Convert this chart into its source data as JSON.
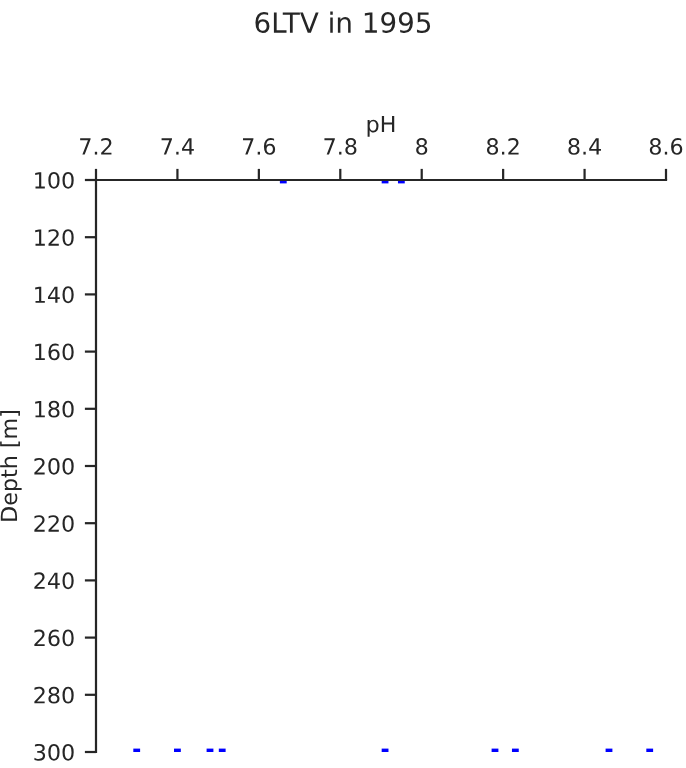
{
  "chart_data": {
    "type": "scatter",
    "title": "6LTV in 1995",
    "xlabel": "pH",
    "ylabel": "Depth [m]",
    "marker": "square",
    "grid": false,
    "xlim": [
      7.2,
      8.6
    ],
    "xticks": [
      7.2,
      7.4,
      7.6,
      7.8,
      {
        "value": 8,
        "label": "8"
      },
      8.2,
      8.4,
      8.6
    ],
    "ylim": [
      300,
      100
    ],
    "yticks": [
      100,
      120,
      140,
      160,
      180,
      200,
      220,
      240,
      260,
      280,
      300
    ],
    "series": [
      {
        "color": "#0000ff",
        "x": [
          7.66,
          7.91,
          7.95,
          7.3,
          7.4,
          7.48,
          7.51,
          7.91,
          8.18,
          8.23,
          8.46,
          8.56
        ],
        "values": [
          100,
          100,
          100,
          300,
          300,
          300,
          300,
          300,
          300,
          300,
          300,
          300
        ]
      }
    ]
  }
}
